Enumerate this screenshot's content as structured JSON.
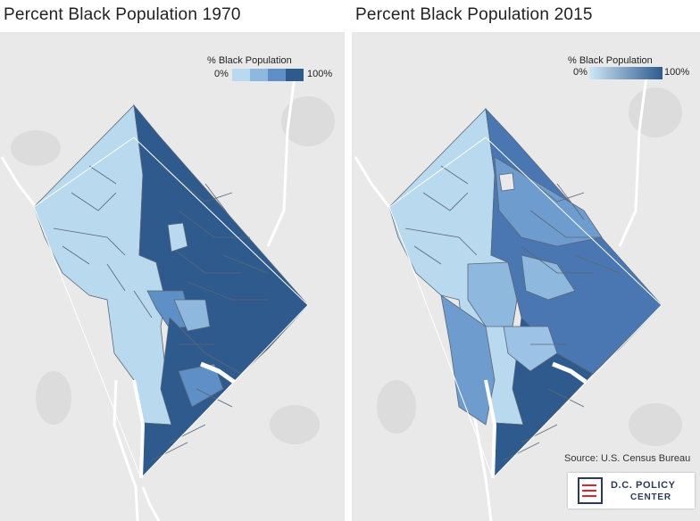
{
  "maps": [
    {
      "title": "Percent Black Population 1970",
      "legend": {
        "title": "% Black Population",
        "min_label": "0%",
        "max_label": "100%",
        "style": "stepped"
      }
    },
    {
      "title": "Percent Black Population 2015",
      "legend": {
        "title": "% Black Population",
        "min_label": "0%",
        "max_label": "100%",
        "style": "gradient"
      }
    }
  ],
  "colors": {
    "light": "#b9d9ef",
    "step2": "#8fb8de",
    "step3": "#5e8fc6",
    "dark": "#2e5a8e",
    "background": "#e9e9e9",
    "river": "#ffffff",
    "water": "#c2c2c2"
  },
  "source": "Source: U.S. Census Bureau",
  "logo": {
    "line1": "D.C. POLICY",
    "line2": "CENTER"
  }
}
